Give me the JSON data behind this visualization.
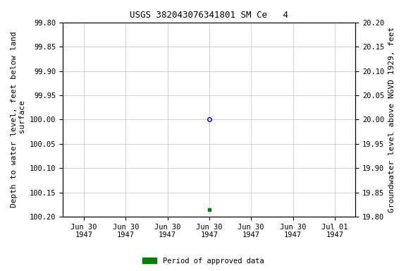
{
  "title": "USGS 382043076341801 SM Ce   4",
  "ylabel_left": "Depth to water level, feet below land\n surface",
  "ylabel_right": "Groundwater level above NGVD 1929, feet",
  "ylim_left": [
    99.8,
    100.2
  ],
  "ylim_right": [
    19.8,
    20.2
  ],
  "yticks_left": [
    99.8,
    99.85,
    99.9,
    99.95,
    100.0,
    100.05,
    100.1,
    100.15,
    100.2
  ],
  "yticks_right": [
    19.8,
    19.85,
    19.9,
    19.95,
    20.0,
    20.05,
    20.1,
    20.15,
    20.2
  ],
  "point_y": 100.0,
  "point_color": "#0000cc",
  "point_marker": "o",
  "point_size": 4,
  "square_y": 100.185,
  "square_color": "#008000",
  "square_marker": "s",
  "square_size": 3,
  "background_color": "#ffffff",
  "plot_bg_color": "#ffffff",
  "grid_color": "#c0c0c0",
  "legend_label": "Period of approved data",
  "legend_color": "#008000",
  "title_fontsize": 9,
  "tick_fontsize": 7.5,
  "label_fontsize": 8,
  "xtick_labels": [
    "Jun 30\n1947",
    "Jun 30\n1947",
    "Jun 30\n1947",
    "Jun 30\n1947",
    "Jun 30\n1947",
    "Jun 30\n1947",
    "Jul 01\n1947"
  ],
  "n_xticks": 7,
  "point_tick_index": 3,
  "xlim_min_days": 0.0,
  "xlim_max_days": 1.75
}
